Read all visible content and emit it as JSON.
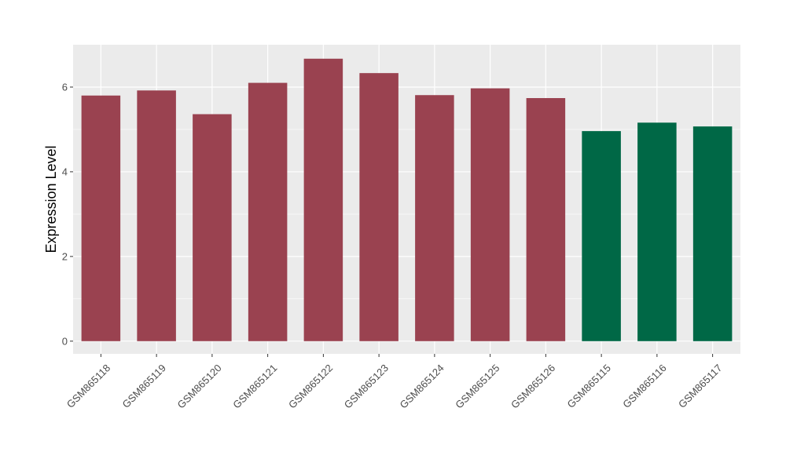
{
  "chart_data": {
    "type": "bar",
    "ylabel": "Expression Level",
    "xlabel": "",
    "title": "",
    "ylim": [
      -0.3,
      7.0
    ],
    "y_ticks": [
      0,
      2,
      4,
      6
    ],
    "grid": true,
    "categories": [
      "GSM865118",
      "GSM865119",
      "GSM865120",
      "GSM865121",
      "GSM865122",
      "GSM865123",
      "GSM865124",
      "GSM865125",
      "GSM865126",
      "GSM865115",
      "GSM865116",
      "GSM865117"
    ],
    "values": [
      5.8,
      5.92,
      5.36,
      6.1,
      6.67,
      6.33,
      5.81,
      5.97,
      5.74,
      4.96,
      5.16,
      5.07
    ],
    "bar_colors": [
      "#9a4250",
      "#9a4250",
      "#9a4250",
      "#9a4250",
      "#9a4250",
      "#9a4250",
      "#9a4250",
      "#9a4250",
      "#9a4250",
      "#006846",
      "#006846",
      "#006846"
    ],
    "panel_background": "#ebebeb",
    "grid_color": "#ffffff"
  }
}
